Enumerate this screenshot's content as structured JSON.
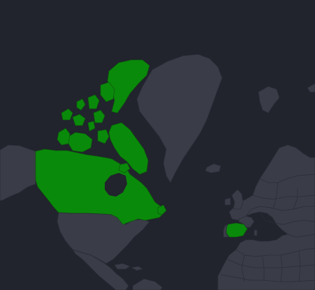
{
  "map": {
    "ocean_color": "#21232d",
    "land_color": "#3a3c48",
    "highlight_color": "#0a8a0a",
    "highlighted_countries": [
      "Canada",
      "Spain"
    ]
  }
}
